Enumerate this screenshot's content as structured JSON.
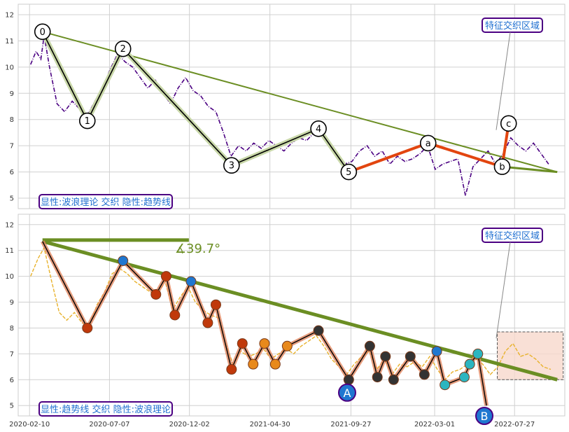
{
  "colors": {
    "price": "#4b0082",
    "price2": "#e8b22c",
    "trend": "#6b8e23",
    "wave": "#000000",
    "waveHalo": "#c8d7a8",
    "corrective": "#e2450f",
    "grid": "#d0d0d0",
    "box_border": "#4b0082",
    "box_text": "#1f6fd0",
    "marker_blue": "#1f77d0",
    "marker_red": "#c0390b",
    "marker_orange": "#e8891c",
    "marker_dark": "#333333",
    "marker_teal": "#2bb5c0",
    "zone_fill": "#f8d8cc"
  },
  "chart_data": [
    {
      "type": "line",
      "panel": "top",
      "y_ticks": [
        "5",
        "6",
        "7",
        "8",
        "9",
        "10",
        "11",
        "12"
      ],
      "ylim": [
        4.6,
        12.4
      ],
      "x_ticks": [
        "2020-02-10",
        "2020-07-07",
        "2020-12-02",
        "2021-04-30",
        "2021-09-27",
        "2022-03-01",
        "2022-07-27"
      ],
      "xlim": [
        "2020-01-20",
        "2022-10-28"
      ],
      "grid": true,
      "annotation_top_right": "特征交织区域",
      "legend_bottom_left": "显性:波浪理论 交织 隐性:趋势线",
      "wave_points": [
        {
          "label": "0",
          "x": "2020-03-05",
          "y": 11.35
        },
        {
          "label": "1",
          "x": "2020-05-27",
          "y": 7.95
        },
        {
          "label": "2",
          "x": "2020-08-01",
          "y": 10.7
        },
        {
          "label": "3",
          "x": "2021-02-18",
          "y": 6.25
        },
        {
          "label": "4",
          "x": "2021-07-29",
          "y": 7.65
        },
        {
          "label": "5",
          "x": "2021-09-23",
          "y": 6.0
        },
        {
          "label": "a",
          "x": "2022-02-17",
          "y": 7.1
        },
        {
          "label": "b",
          "x": "2022-07-04",
          "y": 6.2
        },
        {
          "label": "c",
          "x": "2022-07-16",
          "y": 7.85
        }
      ],
      "price_series": [
        {
          "x": "2020-02-12",
          "y": 10.1
        },
        {
          "x": "2020-02-22",
          "y": 10.6
        },
        {
          "x": "2020-03-02",
          "y": 10.3
        },
        {
          "x": "2020-03-08",
          "y": 11.2
        },
        {
          "x": "2020-03-18",
          "y": 10.0
        },
        {
          "x": "2020-04-01",
          "y": 8.6
        },
        {
          "x": "2020-04-15",
          "y": 8.3
        },
        {
          "x": "2020-04-29",
          "y": 8.7
        },
        {
          "x": "2020-05-13",
          "y": 8.4
        },
        {
          "x": "2020-05-27",
          "y": 8.15
        },
        {
          "x": "2020-06-10",
          "y": 8.7
        },
        {
          "x": "2020-06-24",
          "y": 9.2
        },
        {
          "x": "2020-07-08",
          "y": 9.9
        },
        {
          "x": "2020-07-22",
          "y": 10.5
        },
        {
          "x": "2020-08-05",
          "y": 10.2
        },
        {
          "x": "2020-08-19",
          "y": 10.0
        },
        {
          "x": "2020-09-02",
          "y": 9.6
        },
        {
          "x": "2020-09-16",
          "y": 9.2
        },
        {
          "x": "2020-09-30",
          "y": 9.5
        },
        {
          "x": "2020-10-14",
          "y": 9.0
        },
        {
          "x": "2020-10-28",
          "y": 8.6
        },
        {
          "x": "2020-11-11",
          "y": 9.2
        },
        {
          "x": "2020-11-25",
          "y": 9.6
        },
        {
          "x": "2020-12-09",
          "y": 9.1
        },
        {
          "x": "2020-12-23",
          "y": 8.9
        },
        {
          "x": "2021-01-06",
          "y": 8.5
        },
        {
          "x": "2021-01-20",
          "y": 8.3
        },
        {
          "x": "2021-02-03",
          "y": 7.5
        },
        {
          "x": "2021-02-17",
          "y": 6.6
        },
        {
          "x": "2021-03-03",
          "y": 7.0
        },
        {
          "x": "2021-03-17",
          "y": 6.8
        },
        {
          "x": "2021-03-31",
          "y": 7.1
        },
        {
          "x": "2021-04-14",
          "y": 6.9
        },
        {
          "x": "2021-04-28",
          "y": 7.2
        },
        {
          "x": "2021-05-12",
          "y": 7.0
        },
        {
          "x": "2021-05-26",
          "y": 6.8
        },
        {
          "x": "2021-06-09",
          "y": 7.1
        },
        {
          "x": "2021-06-23",
          "y": 7.3
        },
        {
          "x": "2021-07-07",
          "y": 7.2
        },
        {
          "x": "2021-07-21",
          "y": 7.5
        },
        {
          "x": "2021-08-04",
          "y": 7.4
        },
        {
          "x": "2021-08-18",
          "y": 7.0
        },
        {
          "x": "2021-09-01",
          "y": 6.7
        },
        {
          "x": "2021-09-15",
          "y": 6.3
        },
        {
          "x": "2021-09-29",
          "y": 6.4
        },
        {
          "x": "2021-10-13",
          "y": 6.8
        },
        {
          "x": "2021-10-27",
          "y": 7.0
        },
        {
          "x": "2021-11-10",
          "y": 6.6
        },
        {
          "x": "2021-11-24",
          "y": 6.8
        },
        {
          "x": "2021-12-08",
          "y": 6.3
        },
        {
          "x": "2021-12-22",
          "y": 6.6
        },
        {
          "x": "2022-01-05",
          "y": 6.4
        },
        {
          "x": "2022-01-19",
          "y": 6.5
        },
        {
          "x": "2022-02-02",
          "y": 6.7
        },
        {
          "x": "2022-02-16",
          "y": 7.0
        },
        {
          "x": "2022-03-02",
          "y": 6.1
        },
        {
          "x": "2022-03-16",
          "y": 6.3
        },
        {
          "x": "2022-03-30",
          "y": 6.4
        },
        {
          "x": "2022-04-13",
          "y": 6.5
        },
        {
          "x": "2022-04-27",
          "y": 5.1
        },
        {
          "x": "2022-05-11",
          "y": 6.2
        },
        {
          "x": "2022-05-25",
          "y": 6.5
        },
        {
          "x": "2022-06-08",
          "y": 6.8
        },
        {
          "x": "2022-06-22",
          "y": 6.3
        },
        {
          "x": "2022-07-06",
          "y": 6.7
        },
        {
          "x": "2022-07-20",
          "y": 7.3
        },
        {
          "x": "2022-08-03",
          "y": 7.0
        },
        {
          "x": "2022-08-17",
          "y": 6.8
        },
        {
          "x": "2022-08-31",
          "y": 7.1
        },
        {
          "x": "2022-09-14",
          "y": 6.7
        },
        {
          "x": "2022-09-28",
          "y": 6.3
        }
      ],
      "trendline": [
        {
          "x": "2020-03-05",
          "y": 11.35
        },
        {
          "x": "2022-10-14",
          "y": 6.0
        }
      ]
    },
    {
      "type": "line",
      "panel": "bottom",
      "y_ticks": [
        "5",
        "6",
        "7",
        "8",
        "9",
        "10",
        "11",
        "12"
      ],
      "ylim": [
        4.6,
        12.4
      ],
      "x_ticks": [
        "2020-02-10",
        "2020-07-07",
        "2020-12-02",
        "2021-04-30",
        "2021-09-27",
        "2022-03-01",
        "2022-07-27"
      ],
      "xlim": [
        "2020-01-20",
        "2022-10-28"
      ],
      "grid": true,
      "annotation_top_right": "特征交织区域",
      "legend_bottom_left": "显性:趋势线 交织 隐性:波浪理论",
      "angle_label": "∡39.7°",
      "trendline": [
        {
          "x": "2020-03-05",
          "y": 11.35
        },
        {
          "x": "2022-10-14",
          "y": 6.0
        }
      ],
      "horizontal_line": [
        {
          "x": "2020-03-05",
          "y": 11.4
        },
        {
          "x": "2020-12-01",
          "y": 11.4
        }
      ],
      "big_labels": [
        {
          "label": "A",
          "x": "2021-09-20",
          "y": 5.5
        },
        {
          "label": "B",
          "x": "2022-06-01",
          "y": 4.6
        }
      ],
      "wave_points": [
        {
          "x": "2020-03-05",
          "y": 11.35
        },
        {
          "x": "2020-05-27",
          "y": 8.0
        },
        {
          "x": "2020-08-01",
          "y": 10.6
        },
        {
          "x": "2020-10-01",
          "y": 9.3
        },
        {
          "x": "2020-10-20",
          "y": 10.0
        },
        {
          "x": "2020-11-05",
          "y": 8.5
        },
        {
          "x": "2020-12-05",
          "y": 9.8
        },
        {
          "x": "2021-01-05",
          "y": 8.2
        },
        {
          "x": "2021-01-20",
          "y": 8.9
        },
        {
          "x": "2021-02-18",
          "y": 6.4
        },
        {
          "x": "2021-03-10",
          "y": 7.4
        },
        {
          "x": "2021-03-30",
          "y": 6.6
        },
        {
          "x": "2021-04-20",
          "y": 7.4
        },
        {
          "x": "2021-05-10",
          "y": 6.6
        },
        {
          "x": "2021-06-01",
          "y": 7.3
        },
        {
          "x": "2021-07-29",
          "y": 7.9
        },
        {
          "x": "2021-09-23",
          "y": 6.0
        },
        {
          "x": "2021-11-01",
          "y": 7.3
        },
        {
          "x": "2021-11-15",
          "y": 6.1
        },
        {
          "x": "2021-11-30",
          "y": 6.9
        },
        {
          "x": "2021-12-15",
          "y": 6.0
        },
        {
          "x": "2022-01-15",
          "y": 6.9
        },
        {
          "x": "2022-02-10",
          "y": 6.2
        },
        {
          "x": "2022-03-05",
          "y": 7.1
        },
        {
          "x": "2022-03-20",
          "y": 5.8
        },
        {
          "x": "2022-04-25",
          "y": 6.1
        },
        {
          "x": "2022-05-05",
          "y": 6.6
        },
        {
          "x": "2022-05-20",
          "y": 7.0
        },
        {
          "x": "2022-06-05",
          "y": 5.0
        }
      ],
      "price_series": [
        {
          "x": "2020-02-12",
          "y": 10.0
        },
        {
          "x": "2020-02-26",
          "y": 10.7
        },
        {
          "x": "2020-03-08",
          "y": 11.1
        },
        {
          "x": "2020-03-22",
          "y": 9.8
        },
        {
          "x": "2020-04-05",
          "y": 8.6
        },
        {
          "x": "2020-04-19",
          "y": 8.3
        },
        {
          "x": "2020-05-03",
          "y": 8.6
        },
        {
          "x": "2020-05-17",
          "y": 8.2
        },
        {
          "x": "2020-05-31",
          "y": 8.1
        },
        {
          "x": "2020-06-14",
          "y": 8.9
        },
        {
          "x": "2020-06-28",
          "y": 9.4
        },
        {
          "x": "2020-07-12",
          "y": 10.1
        },
        {
          "x": "2020-07-26",
          "y": 10.3
        },
        {
          "x": "2020-08-09",
          "y": 10.1
        },
        {
          "x": "2020-08-23",
          "y": 9.8
        },
        {
          "x": "2020-09-06",
          "y": 9.6
        },
        {
          "x": "2020-09-20",
          "y": 9.4
        },
        {
          "x": "2020-10-04",
          "y": 9.3
        },
        {
          "x": "2020-10-18",
          "y": 9.8
        },
        {
          "x": "2020-11-01",
          "y": 8.7
        },
        {
          "x": "2020-11-15",
          "y": 9.2
        },
        {
          "x": "2020-11-29",
          "y": 9.6
        },
        {
          "x": "2020-12-13",
          "y": 9.0
        },
        {
          "x": "2020-12-27",
          "y": 8.7
        },
        {
          "x": "2021-01-10",
          "y": 8.5
        },
        {
          "x": "2021-01-24",
          "y": 8.4
        },
        {
          "x": "2021-02-07",
          "y": 7.4
        },
        {
          "x": "2021-02-21",
          "y": 6.6
        },
        {
          "x": "2021-03-07",
          "y": 7.1
        },
        {
          "x": "2021-03-21",
          "y": 6.9
        },
        {
          "x": "2021-04-04",
          "y": 7.0
        },
        {
          "x": "2021-04-18",
          "y": 7.2
        },
        {
          "x": "2021-05-02",
          "y": 6.8
        },
        {
          "x": "2021-05-16",
          "y": 7.0
        },
        {
          "x": "2021-05-30",
          "y": 7.2
        },
        {
          "x": "2021-06-13",
          "y": 7.0
        },
        {
          "x": "2021-06-27",
          "y": 7.3
        },
        {
          "x": "2021-07-11",
          "y": 7.5
        },
        {
          "x": "2021-07-25",
          "y": 7.7
        },
        {
          "x": "2021-08-08",
          "y": 7.3
        },
        {
          "x": "2021-08-22",
          "y": 6.8
        },
        {
          "x": "2021-09-05",
          "y": 6.5
        },
        {
          "x": "2021-09-19",
          "y": 6.2
        },
        {
          "x": "2021-10-03",
          "y": 6.6
        },
        {
          "x": "2021-10-17",
          "y": 6.9
        },
        {
          "x": "2021-10-31",
          "y": 7.1
        },
        {
          "x": "2021-11-14",
          "y": 6.4
        },
        {
          "x": "2021-11-28",
          "y": 6.8
        },
        {
          "x": "2021-12-12",
          "y": 6.2
        },
        {
          "x": "2021-12-26",
          "y": 6.6
        },
        {
          "x": "2022-01-09",
          "y": 6.5
        },
        {
          "x": "2022-01-23",
          "y": 6.7
        },
        {
          "x": "2022-02-06",
          "y": 6.5
        },
        {
          "x": "2022-02-20",
          "y": 6.9
        },
        {
          "x": "2022-03-06",
          "y": 6.4
        },
        {
          "x": "2022-03-20",
          "y": 6.0
        },
        {
          "x": "2022-04-03",
          "y": 6.3
        },
        {
          "x": "2022-04-17",
          "y": 6.4
        },
        {
          "x": "2022-05-01",
          "y": 6.6
        },
        {
          "x": "2022-05-15",
          "y": 6.9
        },
        {
          "x": "2022-05-29",
          "y": 6.6
        },
        {
          "x": "2022-06-12",
          "y": 6.2
        },
        {
          "x": "2022-06-26",
          "y": 6.5
        },
        {
          "x": "2022-07-10",
          "y": 7.1
        },
        {
          "x": "2022-07-24",
          "y": 7.4
        },
        {
          "x": "2022-08-07",
          "y": 6.9
        },
        {
          "x": "2022-08-21",
          "y": 7.0
        },
        {
          "x": "2022-09-04",
          "y": 6.8
        },
        {
          "x": "2022-09-18",
          "y": 6.5
        },
        {
          "x": "2022-10-02",
          "y": 6.4
        }
      ],
      "zone": {
        "x0": "2022-06-25",
        "x1": "2022-10-25",
        "y0": 6.0,
        "y1": 7.85
      }
    }
  ]
}
